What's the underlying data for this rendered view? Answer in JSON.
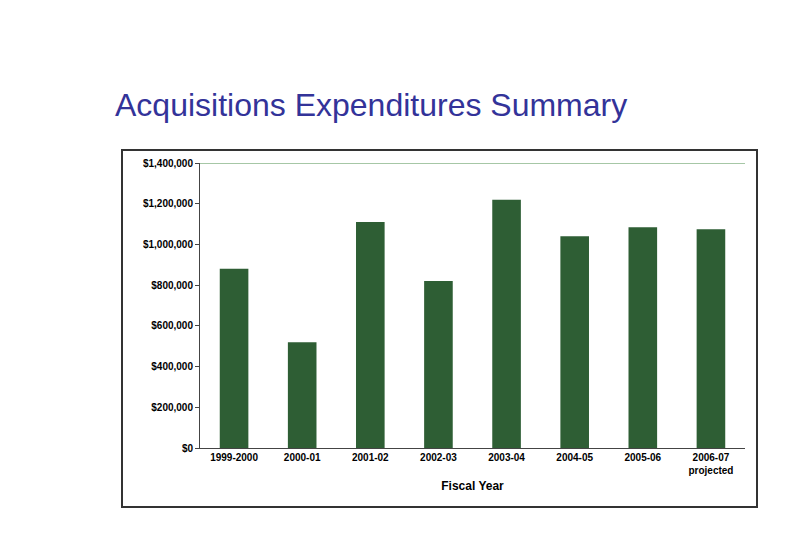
{
  "chart_data": {
    "type": "bar",
    "title": "Acquisitions Expenditures Summary",
    "x_label": "Fiscal Year",
    "categories": [
      "1999-2000",
      "2000-01",
      "2001-02",
      "2002-03",
      "2003-04",
      "2004-05",
      "2005-06",
      "2006-07\nprojected"
    ],
    "values": [
      880000,
      520000,
      1110000,
      820000,
      1220000,
      1040000,
      1085000,
      1075000
    ],
    "color": "#2e5e34",
    "ylim": [
      0,
      1400000
    ],
    "yticks": [
      {
        "value": 0,
        "label": "$0"
      },
      {
        "value": 200000,
        "label": "$200,000"
      },
      {
        "value": 400000,
        "label": "$400,000"
      },
      {
        "value": 600000,
        "label": "$600,000"
      },
      {
        "value": 800000,
        "label": "$800,000"
      },
      {
        "value": 1000000,
        "label": "$1,000,000"
      },
      {
        "value": 1200000,
        "label": "$1,200,000"
      },
      {
        "value": 1400000,
        "label": "$1,400,000"
      }
    ],
    "grid": false
  }
}
